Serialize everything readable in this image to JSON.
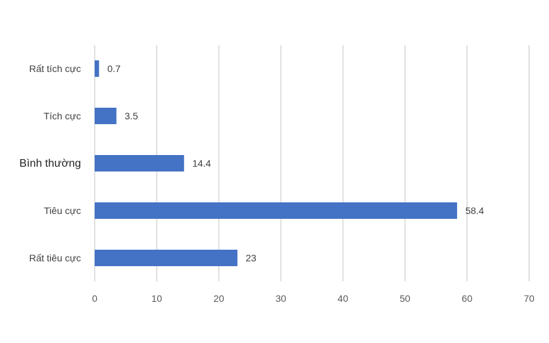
{
  "chart_data": {
    "type": "bar",
    "orientation": "horizontal",
    "categories": [
      "Rất tích cực",
      "Tích cực",
      "Bình thường",
      "Tiêu cực",
      "Rất tiêu cực"
    ],
    "values": [
      0.7,
      3.5,
      14.4,
      58.4,
      23
    ],
    "value_labels": [
      "0.7",
      "3.5",
      "14.4",
      "58.4",
      "23"
    ],
    "xlim": [
      0,
      70
    ],
    "xticks": [
      0,
      10,
      20,
      30,
      40,
      50,
      60,
      70
    ],
    "xtick_labels": [
      "0",
      "10",
      "20",
      "30",
      "40",
      "50",
      "60",
      "70"
    ],
    "grid": "vertical",
    "legend": "none",
    "bar_color": "#4472c4"
  }
}
